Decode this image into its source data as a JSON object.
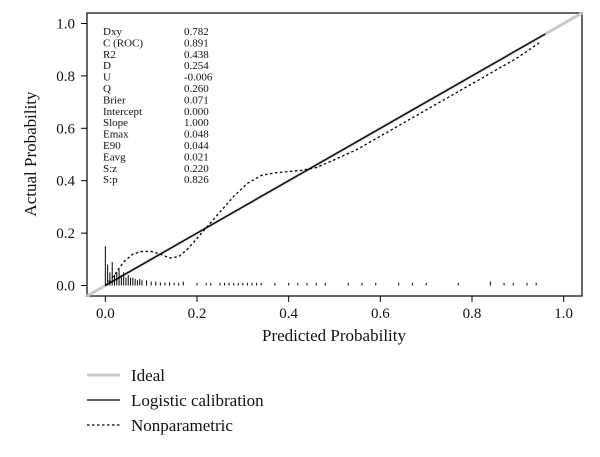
{
  "chart_data": {
    "type": "line",
    "xlabel": "Predicted Probability",
    "ylabel": "Actual Probability",
    "xlim": [
      -0.04,
      1.04
    ],
    "ylim": [
      -0.04,
      1.04
    ],
    "x_ticks": [
      "0.0",
      "0.2",
      "0.4",
      "0.6",
      "0.8",
      "1.0"
    ],
    "y_ticks": [
      "0.0",
      "0.2",
      "0.4",
      "0.6",
      "0.8",
      "1.0"
    ],
    "stats": [
      {
        "name": "Dxy",
        "value": "0.782"
      },
      {
        "name": "C (ROC)",
        "value": "0.891"
      },
      {
        "name": "R2",
        "value": "0.438"
      },
      {
        "name": "D",
        "value": "0.254"
      },
      {
        "name": "U",
        "value": "-0.006"
      },
      {
        "name": "Q",
        "value": "0.260"
      },
      {
        "name": "Brier",
        "value": "0.071"
      },
      {
        "name": "Intercept",
        "value": "0.000"
      },
      {
        "name": "Slope",
        "value": "1.000"
      },
      {
        "name": "Emax",
        "value": "0.048"
      },
      {
        "name": "E90",
        "value": "0.044"
      },
      {
        "name": "Eavg",
        "value": "0.021"
      },
      {
        "name": "S:z",
        "value": "0.220"
      },
      {
        "name": "S:p",
        "value": "0.826"
      }
    ],
    "series": [
      {
        "name": "Ideal",
        "color": "#c8c8c8",
        "style": "solid",
        "x": [
          -0.04,
          1.04
        ],
        "y": [
          -0.04,
          1.04
        ]
      },
      {
        "name": "Logistic calibration",
        "color": "#000000",
        "style": "solid",
        "x": [
          0.0,
          0.96
        ],
        "y": [
          0.0,
          0.96
        ]
      },
      {
        "name": "Nonparametric",
        "color": "#000000",
        "style": "dotted",
        "x": [
          0.0,
          0.02,
          0.04,
          0.06,
          0.08,
          0.1,
          0.12,
          0.14,
          0.16,
          0.18,
          0.2,
          0.22,
          0.25,
          0.28,
          0.31,
          0.34,
          0.37,
          0.4,
          0.43,
          0.46,
          0.5,
          0.55,
          0.6,
          0.65,
          0.7,
          0.75,
          0.8,
          0.85,
          0.9,
          0.95
        ],
        "y": [
          0.0,
          0.04,
          0.09,
          0.12,
          0.13,
          0.13,
          0.12,
          0.105,
          0.11,
          0.14,
          0.18,
          0.22,
          0.28,
          0.34,
          0.39,
          0.42,
          0.43,
          0.435,
          0.44,
          0.45,
          0.48,
          0.52,
          0.57,
          0.62,
          0.67,
          0.72,
          0.77,
          0.82,
          0.87,
          0.93
        ]
      }
    ],
    "rug": {
      "x": [
        0.0,
        0.005,
        0.01,
        0.015,
        0.02,
        0.025,
        0.03,
        0.035,
        0.04,
        0.045,
        0.05,
        0.055,
        0.06,
        0.065,
        0.07,
        0.075,
        0.08,
        0.09,
        0.1,
        0.11,
        0.12,
        0.13,
        0.14,
        0.15,
        0.16,
        0.17,
        0.2,
        0.22,
        0.23,
        0.25,
        0.26,
        0.27,
        0.28,
        0.29,
        0.3,
        0.31,
        0.32,
        0.33,
        0.34,
        0.37,
        0.4,
        0.42,
        0.44,
        0.46,
        0.48,
        0.53,
        0.56,
        0.59,
        0.64,
        0.67,
        0.7,
        0.77,
        0.84,
        0.87,
        0.89,
        0.92,
        0.94
      ],
      "h": [
        0.15,
        0.08,
        0.05,
        0.09,
        0.04,
        0.05,
        0.06,
        0.04,
        0.05,
        0.03,
        0.04,
        0.03,
        0.03,
        0.025,
        0.02,
        0.025,
        0.02,
        0.02,
        0.015,
        0.015,
        0.012,
        0.012,
        0.012,
        0.01,
        0.01,
        0.015,
        0.01,
        0.01,
        0.01,
        0.01,
        0.01,
        0.01,
        0.01,
        0.01,
        0.01,
        0.01,
        0.01,
        0.01,
        0.01,
        0.01,
        0.01,
        0.01,
        0.01,
        0.01,
        0.01,
        0.01,
        0.01,
        0.01,
        0.01,
        0.01,
        0.01,
        0.01,
        0.015,
        0.01,
        0.01,
        0.01,
        0.01
      ]
    },
    "legend": {
      "position": "bottom-left",
      "items": [
        "Ideal",
        "Logistic calibration",
        "Nonparametric"
      ]
    },
    "grid": false
  }
}
